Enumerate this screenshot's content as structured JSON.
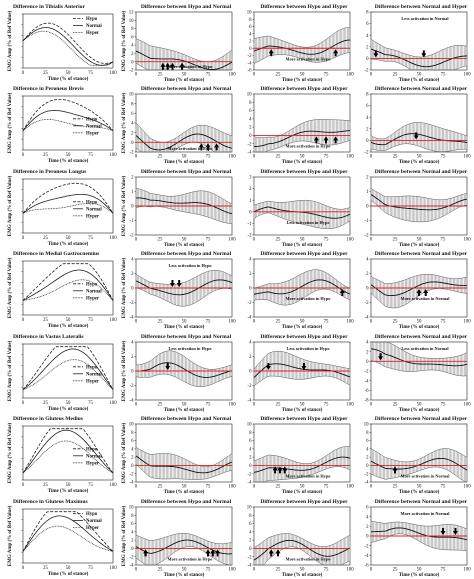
{
  "figure": {
    "x_ticks": [
      0,
      25,
      50,
      75,
      100
    ],
    "x_label": "Time (% of stance)",
    "y_label_col1": "EMG Amp (% of Ref Value)",
    "y_label_diff": "EMG Amp (% of Ref Value)"
  },
  "chart_data": [
    {
      "type": "line",
      "row": 0,
      "col": 0,
      "title": "Difference in Tibialis Anterior",
      "legend_position": "top-right",
      "series": [
        {
          "name": "Hypo"
        },
        {
          "name": "Normal"
        },
        {
          "name": "Hyper"
        }
      ]
    },
    {
      "type": "area",
      "row": 0,
      "col": 1,
      "title": "Difference between Hypo and Normal",
      "ylim": [
        -2,
        12
      ],
      "yticks": [
        -2,
        0,
        2,
        4,
        6,
        8,
        10,
        12
      ],
      "annotation": "More activation in Hypo",
      "arrows": [
        {
          "x": 28,
          "dir": "up"
        },
        {
          "x": 33,
          "dir": "up"
        },
        {
          "x": 38,
          "dir": "up"
        },
        {
          "x": 48,
          "dir": "up"
        }
      ]
    },
    {
      "type": "area",
      "row": 0,
      "col": 2,
      "title": "Difference between Hypo and Hyper",
      "ylim": [
        -6,
        10
      ],
      "yticks": [
        -6,
        -4,
        -2,
        0,
        2,
        4,
        6,
        8,
        10
      ],
      "annotation": "More activation in Hypo",
      "arrows": [
        {
          "x": 18,
          "dir": "up"
        },
        {
          "x": 85,
          "dir": "up"
        }
      ]
    },
    {
      "type": "area",
      "row": 0,
      "col": 3,
      "title": "Difference between Normal and Hyper",
      "ylim": [
        -2,
        8
      ],
      "yticks": [
        -2,
        0,
        2,
        4,
        6,
        8
      ],
      "annotation": "Less activation in Normal",
      "arrows": [
        {
          "x": 5,
          "dir": "down"
        },
        {
          "x": 55,
          "dir": "down"
        }
      ]
    },
    {
      "type": "line",
      "row": 1,
      "col": 0,
      "title": "Difference in Peroneus Brevis",
      "legend_position": "center-right",
      "series": [
        {
          "name": "Hypo"
        },
        {
          "name": "Normal"
        },
        {
          "name": "Hyper"
        }
      ]
    },
    {
      "type": "area",
      "row": 1,
      "col": 1,
      "title": "Difference between Hypo and Normal",
      "ylim": [
        -2,
        10
      ],
      "yticks": [
        -2,
        0,
        2,
        4,
        6,
        8,
        10
      ],
      "annotation": "More activation in Hypo",
      "arrows": [
        {
          "x": 68,
          "dir": "up"
        },
        {
          "x": 75,
          "dir": "up"
        },
        {
          "x": 84,
          "dir": "up"
        }
      ]
    },
    {
      "type": "area",
      "row": 1,
      "col": 2,
      "title": "Difference between Hypo and Hyper",
      "ylim": [
        -4,
        10
      ],
      "yticks": [
        -4,
        -2,
        0,
        2,
        4,
        6,
        8,
        10
      ],
      "annotation": "More activation in Hypo",
      "arrows": [
        {
          "x": 65,
          "dir": "up"
        },
        {
          "x": 75,
          "dir": "up"
        },
        {
          "x": 85,
          "dir": "up"
        }
      ]
    },
    {
      "type": "area",
      "row": 1,
      "col": 3,
      "title": "Difference between Normal and Hyper",
      "ylim": [
        -2,
        8
      ],
      "yticks": [
        -2,
        0,
        2,
        4,
        6,
        8
      ],
      "annotation": "",
      "arrows": [
        {
          "x": 47,
          "dir": "down"
        }
      ]
    },
    {
      "type": "line",
      "row": 2,
      "col": 0,
      "title": "Difference in Peroneus Longus",
      "legend_position": "center-right",
      "series": [
        {
          "name": "Hypo"
        },
        {
          "name": "Normal"
        },
        {
          "name": "Hyper"
        }
      ]
    },
    {
      "type": "area",
      "row": 2,
      "col": 1,
      "title": "Difference between Hypo and Normal",
      "ylim": [
        -2,
        2
      ],
      "yticks": [
        -2,
        -1,
        0,
        1,
        2
      ],
      "annotation": "",
      "arrows": []
    },
    {
      "type": "area",
      "row": 2,
      "col": 2,
      "title": "Difference between Hypo and Hyper",
      "ylim": [
        -2,
        3
      ],
      "yticks": [
        -2,
        -1,
        0,
        1,
        2,
        3
      ],
      "annotation": "Less activation in Hypo",
      "arrows": []
    },
    {
      "type": "area",
      "row": 2,
      "col": 3,
      "title": "Difference between Normal and Hyper",
      "ylim": [
        -2,
        2
      ],
      "yticks": [
        -2,
        -1,
        0,
        1,
        2
      ],
      "annotation": "",
      "arrows": []
    },
    {
      "type": "line",
      "row": 3,
      "col": 0,
      "title": "Difference in Medial Gastrocnemius",
      "legend_position": "center-right",
      "series": [
        {
          "name": "Hypo"
        },
        {
          "name": "Normal"
        },
        {
          "name": "Hyper"
        }
      ]
    },
    {
      "type": "area",
      "row": 3,
      "col": 1,
      "title": "Difference between Hypo and Normal",
      "ylim": [
        -4,
        4
      ],
      "yticks": [
        -4,
        -2,
        0,
        2,
        4
      ],
      "annotation": "Less activation in Hypo",
      "arrows": [
        {
          "x": 38,
          "dir": "down"
        },
        {
          "x": 45,
          "dir": "down"
        }
      ]
    },
    {
      "type": "area",
      "row": 3,
      "col": 2,
      "title": "Difference between Hypo and Hyper",
      "ylim": [
        -4,
        4
      ],
      "yticks": [
        -4,
        -2,
        0,
        2,
        4
      ],
      "annotation": "More activation in Hypo",
      "arrows": [
        {
          "x": 92,
          "dir": "up"
        }
      ]
    },
    {
      "type": "area",
      "row": 3,
      "col": 3,
      "title": "Difference between Normal and Hyper",
      "ylim": [
        -4,
        4
      ],
      "yticks": [
        -4,
        -2,
        0,
        2,
        4
      ],
      "annotation": "More activation in Normal",
      "arrows": [
        {
          "x": 50,
          "dir": "up"
        },
        {
          "x": 57,
          "dir": "up"
        }
      ]
    },
    {
      "type": "line",
      "row": 4,
      "col": 0,
      "title": "Difference in Vastus Lateralis",
      "legend_position": "center-right",
      "series": [
        {
          "name": "Hypo"
        },
        {
          "name": "Normal"
        },
        {
          "name": "Hyper"
        }
      ]
    },
    {
      "type": "area",
      "row": 4,
      "col": 1,
      "title": "Difference between Hypo and Normal",
      "ylim": [
        -4,
        4
      ],
      "yticks": [
        -4,
        -2,
        0,
        2,
        4
      ],
      "annotation": "Less activation in Hypo",
      "arrows": [
        {
          "x": 33,
          "dir": "down"
        }
      ]
    },
    {
      "type": "area",
      "row": 4,
      "col": 2,
      "title": "Difference between Hypo and Hyper",
      "ylim": [
        -4,
        4
      ],
      "yticks": [
        -4,
        -2,
        0,
        2,
        4
      ],
      "annotation": "Less activation in Hypo",
      "arrows": [
        {
          "x": 15,
          "dir": "down"
        },
        {
          "x": 52,
          "dir": "down"
        }
      ]
    },
    {
      "type": "area",
      "row": 4,
      "col": 3,
      "title": "Difference between Normal and Hyper",
      "ylim": [
        -8,
        4
      ],
      "yticks": [
        -8,
        -6,
        -4,
        -2,
        0,
        2,
        4
      ],
      "annotation": "Less activation in Normal",
      "arrows": [
        {
          "x": 10,
          "dir": "down"
        }
      ]
    },
    {
      "type": "line",
      "row": 5,
      "col": 0,
      "title": "Difference in Gluteus Medius",
      "legend_position": "center-right",
      "series": [
        {
          "name": "Hypo"
        },
        {
          "name": "Normal"
        },
        {
          "name": "Hyper"
        }
      ]
    },
    {
      "type": "area",
      "row": 5,
      "col": 1,
      "title": "Difference between Hypo and Normal",
      "ylim": [
        -4,
        10
      ],
      "yticks": [
        -4,
        -2,
        0,
        2,
        4,
        6,
        8,
        10
      ],
      "annotation": "",
      "arrows": []
    },
    {
      "type": "area",
      "row": 5,
      "col": 2,
      "title": "Difference between Hypo and Hyper",
      "ylim": [
        -4,
        10
      ],
      "yticks": [
        -4,
        -2,
        0,
        2,
        4,
        6,
        8,
        10
      ],
      "annotation": "More activation in Hypo",
      "arrows": [
        {
          "x": 22,
          "dir": "up"
        },
        {
          "x": 27,
          "dir": "up"
        },
        {
          "x": 32,
          "dir": "up"
        }
      ]
    },
    {
      "type": "area",
      "row": 5,
      "col": 3,
      "title": "Difference between Normal and Hyper",
      "ylim": [
        -4,
        10
      ],
      "yticks": [
        -4,
        -2,
        0,
        2,
        4,
        6,
        8,
        10
      ],
      "annotation": "More activation in Normal",
      "arrows": [
        {
          "x": 25,
          "dir": "up"
        }
      ]
    },
    {
      "type": "line",
      "row": 6,
      "col": 0,
      "title": "Difference in Gluteus Maximus",
      "legend_position": "top-right",
      "series": [
        {
          "name": "Hypo"
        },
        {
          "name": "Normal"
        },
        {
          "name": "Hyper"
        }
      ]
    },
    {
      "type": "area",
      "row": 6,
      "col": 1,
      "title": "Difference between Hypo and Normal",
      "ylim": [
        -4,
        10
      ],
      "yticks": [
        -4,
        -2,
        0,
        2,
        4,
        6,
        8,
        10
      ],
      "annotation": "More activation in Hypo",
      "arrows": [
        {
          "x": 10,
          "dir": "up"
        },
        {
          "x": 75,
          "dir": "up"
        },
        {
          "x": 80,
          "dir": "up"
        },
        {
          "x": 85,
          "dir": "up"
        }
      ]
    },
    {
      "type": "area",
      "row": 6,
      "col": 2,
      "title": "Difference between Hypo and Hyper",
      "ylim": [
        -4,
        10
      ],
      "yticks": [
        -4,
        -2,
        0,
        2,
        4,
        6,
        8,
        10
      ],
      "annotation": "More activation in Hypo",
      "arrows": [
        {
          "x": 18,
          "dir": "up"
        },
        {
          "x": 25,
          "dir": "up"
        }
      ]
    },
    {
      "type": "area",
      "row": 6,
      "col": 3,
      "title": "Difference between Normal and Hyper",
      "ylim": [
        -6,
        6
      ],
      "yticks": [
        -6,
        -4,
        -2,
        0,
        2,
        4,
        6
      ],
      "annotation": "More activation in Normal",
      "arrows": [
        {
          "x": 75,
          "dir": "down"
        },
        {
          "x": 88,
          "dir": "down"
        }
      ]
    }
  ],
  "colors": {
    "zero_line": "#e02020",
    "band": "#9a9a9a",
    "mean": "#111111"
  }
}
